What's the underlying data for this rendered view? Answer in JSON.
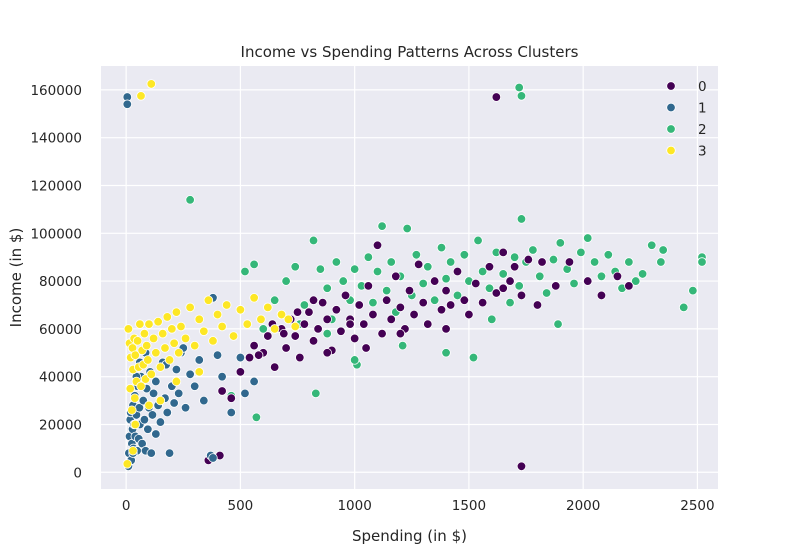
{
  "chart_data": {
    "type": "scatter",
    "title": "Income vs Spending Patterns Across Clusters",
    "xlabel": "Spending (in $)",
    "ylabel": "Income (in $)",
    "xlim": [
      -110,
      2590
    ],
    "ylim": [
      -7000,
      170000
    ],
    "xticks": [
      0,
      500,
      1000,
      1500,
      2000,
      2500
    ],
    "yticks": [
      0,
      20000,
      40000,
      60000,
      80000,
      100000,
      120000,
      140000,
      160000
    ],
    "xtick_labels": [
      "0",
      "500",
      "1000",
      "1500",
      "2000",
      "2500"
    ],
    "ytick_labels": [
      "0",
      "20000",
      "40000",
      "60000",
      "80000",
      "100000",
      "120000",
      "140000",
      "160000"
    ],
    "grid": true,
    "legend_position": "top-right",
    "colors": {
      "background": "#eaeaf2",
      "grid": "#ffffff",
      "marker_edge": "#ffffff",
      "cluster_0": "#440154",
      "cluster_1": "#31688e",
      "cluster_2": "#35b779",
      "cluster_3": "#fde725"
    },
    "series": [
      {
        "name": "0",
        "color": "#440154",
        "points": [
          [
            360,
            5000
          ],
          [
            410,
            7000
          ],
          [
            1620,
            157000
          ],
          [
            1730,
            2500
          ],
          [
            420,
            34000
          ],
          [
            460,
            31000
          ],
          [
            500,
            42000
          ],
          [
            540,
            48000
          ],
          [
            560,
            53000
          ],
          [
            600,
            50000
          ],
          [
            620,
            57000
          ],
          [
            650,
            44000
          ],
          [
            680,
            60000
          ],
          [
            700,
            52000
          ],
          [
            720,
            64000
          ],
          [
            740,
            57000
          ],
          [
            760,
            48000
          ],
          [
            780,
            62000
          ],
          [
            800,
            67000
          ],
          [
            820,
            55000
          ],
          [
            840,
            60000
          ],
          [
            860,
            71000
          ],
          [
            880,
            64000
          ],
          [
            900,
            51000
          ],
          [
            920,
            68000
          ],
          [
            940,
            59000
          ],
          [
            960,
            74000
          ],
          [
            980,
            64000
          ],
          [
            1000,
            56000
          ],
          [
            1020,
            70000
          ],
          [
            1040,
            62000
          ],
          [
            1060,
            78000
          ],
          [
            1080,
            66000
          ],
          [
            1100,
            95000
          ],
          [
            1120,
            58000
          ],
          [
            1140,
            72000
          ],
          [
            1160,
            64000
          ],
          [
            1180,
            82000
          ],
          [
            1200,
            69000
          ],
          [
            1220,
            60000
          ],
          [
            1240,
            76000
          ],
          [
            1260,
            66000
          ],
          [
            1280,
            87000
          ],
          [
            1300,
            71000
          ],
          [
            1320,
            62000
          ],
          [
            1350,
            80000
          ],
          [
            1380,
            68000
          ],
          [
            1400,
            76000
          ],
          [
            1420,
            70000
          ],
          [
            1450,
            84000
          ],
          [
            1480,
            72000
          ],
          [
            1500,
            66000
          ],
          [
            1530,
            79000
          ],
          [
            1560,
            71000
          ],
          [
            1590,
            86000
          ],
          [
            1620,
            75000
          ],
          [
            1650,
            92000
          ],
          [
            1680,
            80000
          ],
          [
            1700,
            86000
          ],
          [
            1730,
            74000
          ],
          [
            1760,
            89000
          ],
          [
            1800,
            70000
          ],
          [
            1820,
            88000
          ],
          [
            1880,
            78000
          ],
          [
            1940,
            88000
          ],
          [
            2020,
            80000
          ],
          [
            2080,
            74000
          ],
          [
            2150,
            82000
          ],
          [
            2200,
            78000
          ],
          [
            1650,
            77000
          ],
          [
            1400,
            60000
          ],
          [
            1200,
            58000
          ],
          [
            1050,
            52000
          ],
          [
            980,
            62000
          ],
          [
            880,
            50000
          ],
          [
            820,
            72000
          ],
          [
            750,
            67000
          ],
          [
            690,
            58000
          ],
          [
            640,
            62000
          ],
          [
            580,
            49000
          ]
        ]
      },
      {
        "name": "1",
        "color": "#31688e",
        "points": [
          [
            5,
            157000
          ],
          [
            5,
            154000
          ],
          [
            10,
            2500
          ],
          [
            12,
            8000
          ],
          [
            15,
            15000
          ],
          [
            18,
            22000
          ],
          [
            20,
            25000
          ],
          [
            22,
            5000
          ],
          [
            25,
            12000
          ],
          [
            28,
            18000
          ],
          [
            30,
            28000
          ],
          [
            32,
            10000
          ],
          [
            35,
            20000
          ],
          [
            38,
            32000
          ],
          [
            40,
            15000
          ],
          [
            45,
            24000
          ],
          [
            48,
            9000
          ],
          [
            50,
            36000
          ],
          [
            55,
            14000
          ],
          [
            58,
            27000
          ],
          [
            60,
            20000
          ],
          [
            65,
            40000
          ],
          [
            70,
            12000
          ],
          [
            75,
            30000
          ],
          [
            80,
            22000
          ],
          [
            85,
            9000
          ],
          [
            90,
            35000
          ],
          [
            95,
            18000
          ],
          [
            100,
            27000
          ],
          [
            105,
            42000
          ],
          [
            110,
            8000
          ],
          [
            115,
            24000
          ],
          [
            120,
            33000
          ],
          [
            130,
            16000
          ],
          [
            140,
            28000
          ],
          [
            150,
            21000
          ],
          [
            160,
            46000
          ],
          [
            170,
            31000
          ],
          [
            180,
            25000
          ],
          [
            190,
            8000
          ],
          [
            200,
            36000
          ],
          [
            210,
            29000
          ],
          [
            220,
            43000
          ],
          [
            230,
            33000
          ],
          [
            240,
            50000
          ],
          [
            260,
            27000
          ],
          [
            280,
            41000
          ],
          [
            300,
            36000
          ],
          [
            320,
            47000
          ],
          [
            340,
            30000
          ],
          [
            370,
            7000
          ],
          [
            380,
            6000
          ],
          [
            400,
            49000
          ],
          [
            420,
            40000
          ],
          [
            460,
            25000
          ],
          [
            500,
            48000
          ],
          [
            520,
            33000
          ],
          [
            560,
            38000
          ],
          [
            380,
            73000
          ],
          [
            30,
            8000
          ],
          [
            45,
            40000
          ],
          [
            60,
            46000
          ],
          [
            85,
            50000
          ],
          [
            130,
            38000
          ],
          [
            175,
            45000
          ],
          [
            250,
            52000
          ]
        ]
      },
      {
        "name": "2",
        "color": "#35b779",
        "points": [
          [
            1720,
            161000
          ],
          [
            1730,
            157500
          ],
          [
            280,
            114000
          ],
          [
            570,
            23000
          ],
          [
            830,
            33000
          ],
          [
            1730,
            106000
          ],
          [
            460,
            32000
          ],
          [
            520,
            84000
          ],
          [
            560,
            87000
          ],
          [
            600,
            60000
          ],
          [
            650,
            72000
          ],
          [
            700,
            80000
          ],
          [
            740,
            86000
          ],
          [
            780,
            70000
          ],
          [
            820,
            97000
          ],
          [
            850,
            85000
          ],
          [
            880,
            77000
          ],
          [
            900,
            64000
          ],
          [
            920,
            88000
          ],
          [
            950,
            80000
          ],
          [
            980,
            72000
          ],
          [
            1000,
            85000
          ],
          [
            1010,
            45000
          ],
          [
            1030,
            78000
          ],
          [
            1060,
            90000
          ],
          [
            1080,
            71000
          ],
          [
            1100,
            84000
          ],
          [
            1120,
            103000
          ],
          [
            1140,
            76000
          ],
          [
            1160,
            88000
          ],
          [
            1180,
            67000
          ],
          [
            1200,
            82000
          ],
          [
            1230,
            102000
          ],
          [
            1250,
            74000
          ],
          [
            1270,
            91000
          ],
          [
            1300,
            79000
          ],
          [
            1320,
            86000
          ],
          [
            1350,
            72000
          ],
          [
            1380,
            94000
          ],
          [
            1400,
            81000
          ],
          [
            1420,
            88000
          ],
          [
            1450,
            74000
          ],
          [
            1480,
            91000
          ],
          [
            1500,
            80000
          ],
          [
            1520,
            48000
          ],
          [
            1540,
            97000
          ],
          [
            1560,
            84000
          ],
          [
            1590,
            77000
          ],
          [
            1620,
            92000
          ],
          [
            1650,
            83000
          ],
          [
            1680,
            71000
          ],
          [
            1700,
            90000
          ],
          [
            1720,
            78000
          ],
          [
            1750,
            88000
          ],
          [
            1780,
            93000
          ],
          [
            1810,
            82000
          ],
          [
            1840,
            75000
          ],
          [
            1870,
            89000
          ],
          [
            1900,
            96000
          ],
          [
            1930,
            85000
          ],
          [
            1960,
            79000
          ],
          [
            1990,
            92000
          ],
          [
            2020,
            98000
          ],
          [
            2050,
            88000
          ],
          [
            2080,
            82000
          ],
          [
            2110,
            91000
          ],
          [
            2140,
            84000
          ],
          [
            2170,
            77000
          ],
          [
            2200,
            88000
          ],
          [
            2230,
            80000
          ],
          [
            2260,
            83000
          ],
          [
            2300,
            95000
          ],
          [
            2340,
            88000
          ],
          [
            2350,
            93000
          ],
          [
            2440,
            69000
          ],
          [
            2480,
            76000
          ],
          [
            2520,
            90000
          ],
          [
            2520,
            88000
          ],
          [
            1890,
            62000
          ],
          [
            1600,
            64000
          ],
          [
            1400,
            50000
          ],
          [
            1210,
            53000
          ],
          [
            1000,
            47000
          ],
          [
            880,
            58000
          ],
          [
            760,
            62000
          ],
          [
            680,
            66000
          ]
        ]
      },
      {
        "name": "3",
        "color": "#fde725",
        "points": [
          [
            110,
            162500
          ],
          [
            65,
            157500
          ],
          [
            5,
            3500
          ],
          [
            10,
            60000
          ],
          [
            15,
            54000
          ],
          [
            18,
            35000
          ],
          [
            20,
            48000
          ],
          [
            25,
            26000
          ],
          [
            28,
            52000
          ],
          [
            30,
            43000
          ],
          [
            35,
            56000
          ],
          [
            38,
            31000
          ],
          [
            40,
            49000
          ],
          [
            45,
            38000
          ],
          [
            50,
            55000
          ],
          [
            55,
            44000
          ],
          [
            60,
            62000
          ],
          [
            65,
            36000
          ],
          [
            70,
            51000
          ],
          [
            75,
            45000
          ],
          [
            80,
            58000
          ],
          [
            85,
            39000
          ],
          [
            90,
            53000
          ],
          [
            95,
            47000
          ],
          [
            100,
            62000
          ],
          [
            110,
            41000
          ],
          [
            120,
            56000
          ],
          [
            130,
            50000
          ],
          [
            140,
            63000
          ],
          [
            150,
            44000
          ],
          [
            160,
            58000
          ],
          [
            170,
            52000
          ],
          [
            180,
            65000
          ],
          [
            190,
            47000
          ],
          [
            200,
            60000
          ],
          [
            210,
            54000
          ],
          [
            220,
            67000
          ],
          [
            230,
            50000
          ],
          [
            240,
            61000
          ],
          [
            260,
            56000
          ],
          [
            280,
            69000
          ],
          [
            300,
            53000
          ],
          [
            320,
            64000
          ],
          [
            340,
            59000
          ],
          [
            360,
            72000
          ],
          [
            380,
            55000
          ],
          [
            400,
            66000
          ],
          [
            420,
            61000
          ],
          [
            440,
            70000
          ],
          [
            470,
            57000
          ],
          [
            500,
            68000
          ],
          [
            530,
            62000
          ],
          [
            560,
            73000
          ],
          [
            590,
            64000
          ],
          [
            620,
            69000
          ],
          [
            650,
            60000
          ],
          [
            680,
            66000
          ],
          [
            710,
            64000
          ],
          [
            740,
            61000
          ],
          [
            30,
            9000
          ],
          [
            40,
            20000
          ],
          [
            150,
            30000
          ],
          [
            100,
            28000
          ],
          [
            220,
            38000
          ],
          [
            320,
            42000
          ]
        ]
      }
    ]
  }
}
